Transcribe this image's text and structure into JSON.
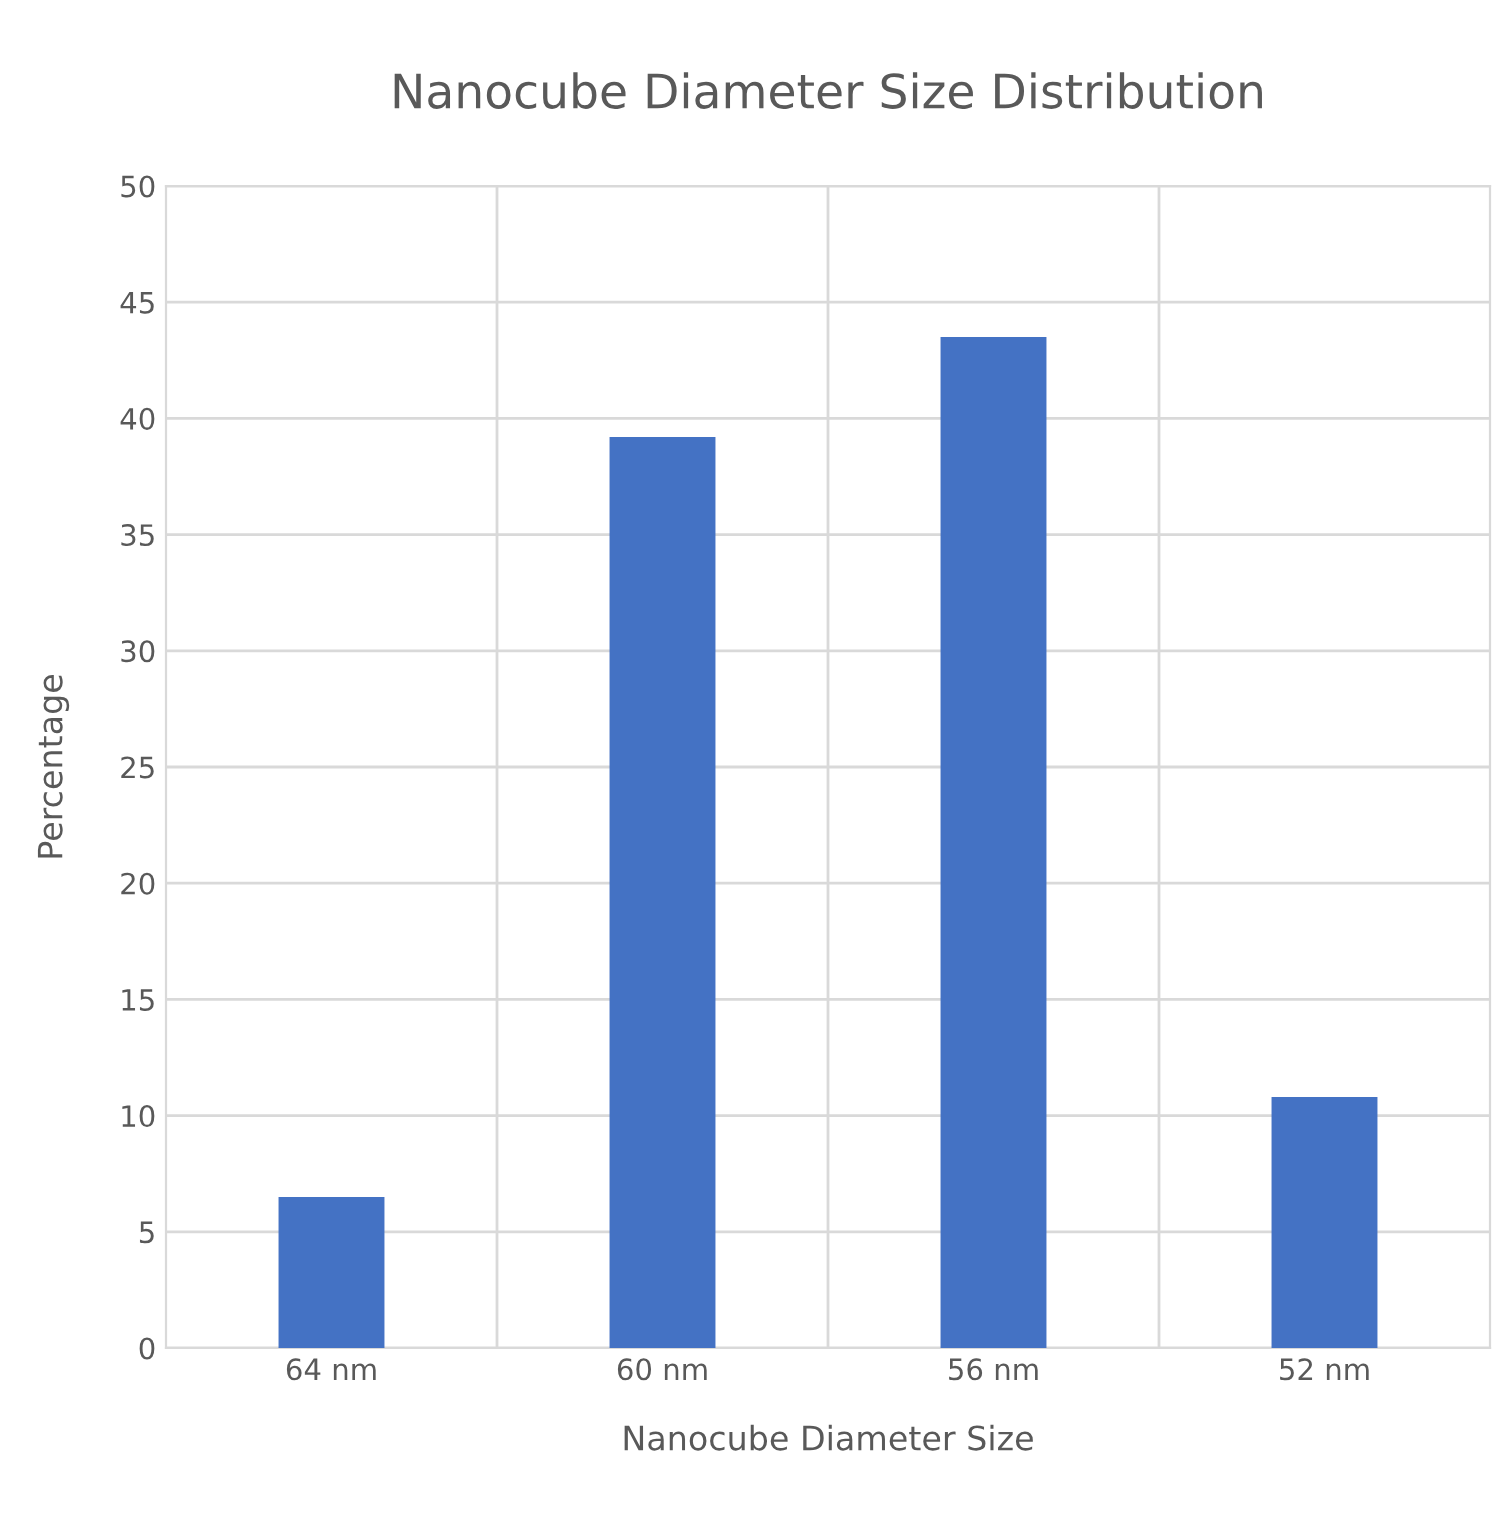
{
  "chart_data": {
    "type": "bar",
    "title": "Nanocube Diameter Size Distribution",
    "xlabel": "Nanocube Diameter Size",
    "ylabel": "Percentage",
    "categories": [
      "64 nm",
      "60 nm",
      "56 nm",
      "52 nm"
    ],
    "values": [
      6.5,
      39.2,
      43.5,
      10.8
    ],
    "color": "#4472c4",
    "ylim": [
      0,
      50
    ],
    "yticks": [
      0,
      5,
      10,
      15,
      20,
      25,
      30,
      35,
      40,
      45,
      50
    ],
    "grid": true
  }
}
